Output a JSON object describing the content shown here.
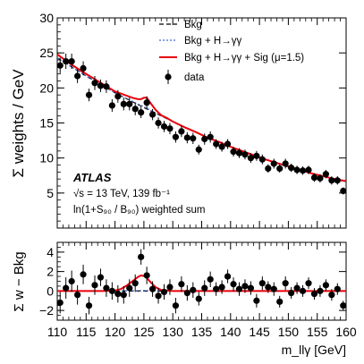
{
  "chart_data": [
    {
      "type": "scatter",
      "ylabel": "Σ weights / GeV",
      "ylim": [
        0,
        30
      ],
      "yticks": [
        "5",
        "10",
        "15",
        "20",
        "25",
        "30"
      ],
      "xlim": [
        110,
        160
      ],
      "legend": {
        "placement": "top-right",
        "entries": [
          "Bkg",
          "Bkg + H→γγ",
          "Bkg + H→γγ + Sig (μ=1.5)",
          "data"
        ]
      },
      "annotations": {
        "experiment": "ATLAS",
        "energy": "√s = 13 TeV, 139 fb⁻¹",
        "weighting": "ln(1+S₉₀ / B₉₀) weighted sum"
      },
      "series": [
        {
          "name": "data",
          "x": [
            110.5,
            111.5,
            112.5,
            113.5,
            114.5,
            115.5,
            116.5,
            117.5,
            118.5,
            119.5,
            120.5,
            121.5,
            122.5,
            123.5,
            124.5,
            125.5,
            126.5,
            127.5,
            128.5,
            129.5,
            130.5,
            131.5,
            132.5,
            133.5,
            134.5,
            135.5,
            136.5,
            137.5,
            138.5,
            139.5,
            140.5,
            141.5,
            142.5,
            143.5,
            144.5,
            145.5,
            146.5,
            147.5,
            148.5,
            149.5,
            150.5,
            151.5,
            152.5,
            153.5,
            154.5,
            155.5,
            156.5,
            157.5,
            158.5,
            159.5
          ],
          "y": [
            23.2,
            23.8,
            23.8,
            21.7,
            22.8,
            19.0,
            20.7,
            20.3,
            20.2,
            17.5,
            18.8,
            17.7,
            17.7,
            17.0,
            16.5,
            17.9,
            16.2,
            15.0,
            14.5,
            14.2,
            13.0,
            13.8,
            12.9,
            12.8,
            11.2,
            12.7,
            13.0,
            12.0,
            11.6,
            12.0,
            10.9,
            10.7,
            10.5,
            10.0,
            10.3,
            9.8,
            8.5,
            9.2,
            8.5,
            9.2,
            8.6,
            8.3,
            8.2,
            8.3,
            7.2,
            7.1,
            7.7,
            6.8,
            6.8,
            5.3
          ],
          "yerr": [
            1.1,
            1.1,
            1.1,
            1.0,
            1.0,
            0.9,
            1.0,
            0.9,
            0.9,
            0.9,
            0.9,
            0.9,
            0.9,
            0.9,
            0.8,
            0.9,
            0.8,
            0.8,
            0.8,
            0.8,
            0.8,
            0.8,
            0.8,
            0.8,
            0.7,
            0.8,
            0.8,
            0.7,
            0.7,
            0.7,
            0.7,
            0.7,
            0.7,
            0.7,
            0.7,
            0.7,
            0.6,
            0.7,
            0.6,
            0.7,
            0.6,
            0.6,
            0.6,
            0.6,
            0.6,
            0.6,
            0.6,
            0.6,
            0.6,
            0.5
          ]
        },
        {
          "name": "Bkg",
          "x": [
            110,
            115,
            120,
            125,
            130,
            135,
            140,
            145,
            150,
            155,
            160
          ],
          "y": [
            24.3,
            21.7,
            19.3,
            17.2,
            15.2,
            13.3,
            11.6,
            10.1,
            8.7,
            7.6,
            6.6
          ]
        },
        {
          "name": "Bkg + H→γγ",
          "x": [
            110,
            115,
            120,
            125,
            130,
            135,
            140,
            145,
            150,
            155,
            160
          ],
          "y": [
            24.3,
            21.7,
            19.3,
            17.3,
            15.2,
            13.3,
            11.6,
            10.1,
            8.7,
            7.6,
            6.6
          ]
        },
        {
          "name": "Bkg + H→γγ + Sig (μ=1.5)",
          "x": [
            110,
            112,
            114,
            116,
            118,
            120,
            121,
            122,
            123,
            124,
            124.5,
            125,
            125.5,
            126,
            127,
            128,
            129,
            130,
            132,
            134,
            136,
            138,
            140,
            142,
            144,
            146,
            148,
            150,
            152,
            154,
            156,
            158,
            160
          ],
          "y": [
            24.8,
            23.6,
            22.5,
            21.5,
            20.5,
            19.5,
            19.2,
            18.9,
            18.6,
            18.4,
            18.4,
            18.6,
            18.6,
            18.0,
            16.9,
            16.1,
            15.7,
            15.2,
            14.4,
            13.7,
            12.9,
            12.3,
            11.6,
            11.0,
            10.4,
            9.8,
            9.3,
            8.8,
            8.3,
            7.8,
            7.4,
            7.0,
            6.7
          ]
        }
      ]
    },
    {
      "type": "scatter",
      "xlabel": "m_llγ [GeV]",
      "ylabel": "Σ w − Bkg",
      "ylim": [
        -3,
        5
      ],
      "yticks": [
        "−2",
        "0",
        "2",
        "4"
      ],
      "xlim": [
        110,
        160
      ],
      "xticks": [
        "110",
        "115",
        "120",
        "125",
        "130",
        "135",
        "140",
        "145",
        "150",
        "155",
        "160"
      ],
      "series": [
        {
          "name": "data",
          "x": [
            110.5,
            111.5,
            112.5,
            113.5,
            114.5,
            115.5,
            116.5,
            117.5,
            118.5,
            119.5,
            120.5,
            121.5,
            122.5,
            123.5,
            124.5,
            125.5,
            126.5,
            127.5,
            128.5,
            129.5,
            130.5,
            131.5,
            132.5,
            133.5,
            134.5,
            135.5,
            136.5,
            137.5,
            138.5,
            139.5,
            140.5,
            141.5,
            142.5,
            143.5,
            144.5,
            145.5,
            146.5,
            147.5,
            148.5,
            149.5,
            150.5,
            151.5,
            152.5,
            153.5,
            154.5,
            155.5,
            156.5,
            157.5,
            158.5,
            159.5
          ],
          "y": [
            -1.2,
            0.3,
            1.0,
            -0.4,
            1.7,
            -1.5,
            0.6,
            1.4,
            0.3,
            0.0,
            -0.3,
            -0.4,
            0.3,
            0.8,
            3.5,
            1.6,
            0.2,
            -0.5,
            -0.1,
            0.4,
            -1.5,
            0.7,
            -0.2,
            0.1,
            -0.8,
            0.3,
            1.2,
            0.2,
            0.4,
            1.5,
            0.7,
            0.2,
            0.5,
            0.3,
            -1.0,
            0.8,
            0.4,
            0.2,
            -1.1,
            0.8,
            -0.2,
            0.3,
            0.0,
            0.8,
            -0.3,
            0.0,
            0.6,
            -0.4,
            0.2,
            -1.5
          ],
          "yerr": [
            1.1,
            1.1,
            1.1,
            1.0,
            1.0,
            0.9,
            1.0,
            0.9,
            0.9,
            0.9,
            0.9,
            0.9,
            0.9,
            0.9,
            0.8,
            0.9,
            0.8,
            0.8,
            0.8,
            0.8,
            0.8,
            0.8,
            0.8,
            0.8,
            0.7,
            0.8,
            0.8,
            0.7,
            0.7,
            0.7,
            0.7,
            0.7,
            0.7,
            0.7,
            0.7,
            0.7,
            0.6,
            0.7,
            0.6,
            0.7,
            0.6,
            0.6,
            0.6,
            0.6,
            0.6,
            0.6,
            0.6,
            0.6,
            0.6,
            0.5
          ]
        },
        {
          "name": "Bkg",
          "x": [
            110,
            160
          ],
          "y": [
            0,
            0
          ]
        },
        {
          "name": "Bkg + H→γγ",
          "x": [
            110,
            120,
            124,
            125,
            126,
            130,
            160
          ],
          "y": [
            0,
            0,
            0.03,
            0.05,
            0.03,
            0,
            0
          ]
        },
        {
          "name": "Bkg + H→γγ + Sig (μ=1.5)",
          "x": [
            110,
            118,
            120,
            121,
            122,
            123,
            124,
            124.5,
            125,
            125.5,
            126,
            127,
            128,
            130,
            132,
            160
          ],
          "y": [
            0,
            0,
            0.05,
            0.2,
            0.55,
            1.0,
            1.45,
            1.6,
            1.55,
            1.35,
            1.0,
            0.4,
            0.1,
            0,
            0,
            0
          ]
        }
      ]
    }
  ]
}
